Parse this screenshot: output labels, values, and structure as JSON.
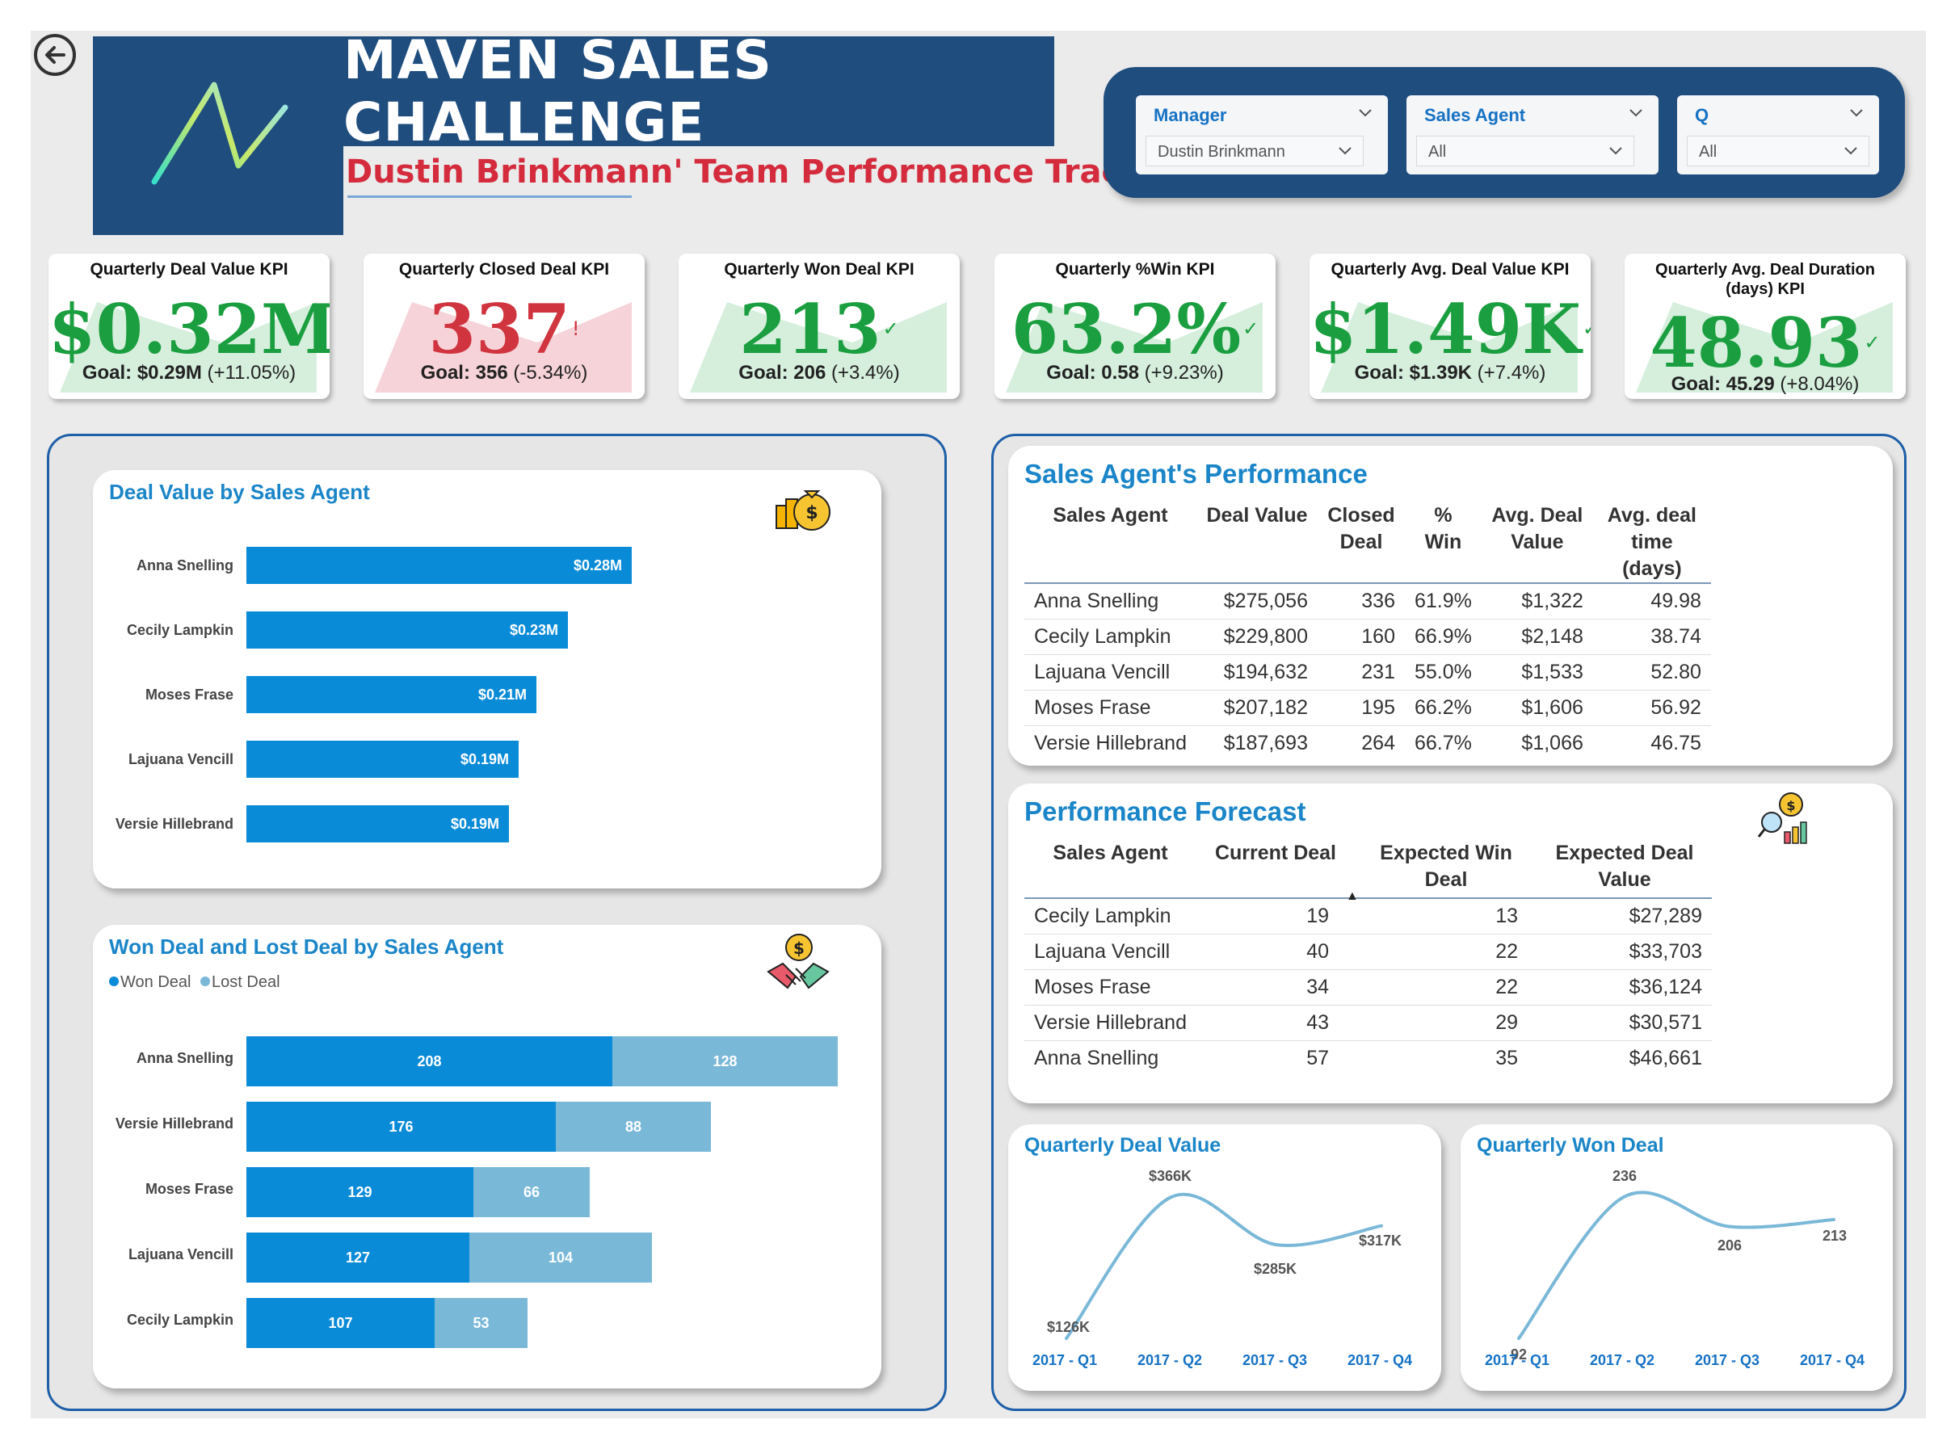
{
  "header": {
    "title": "MAVEN SALES CHALLENGE",
    "subtitle": "Dustin Brinkmann' Team Performance Tracker"
  },
  "filters": [
    {
      "label": "Manager",
      "value": "Dustin Brinkmann"
    },
    {
      "label": "Sales Agent",
      "value": "All"
    },
    {
      "label": "Q",
      "value": "All"
    }
  ],
  "kpis": [
    {
      "title": "Quarterly Deal Value KPI",
      "value": "$0.32M",
      "status": "good",
      "mark": "✓",
      "goal_label": "Goal: $0.29M",
      "goal_delta": "(+11.05%)"
    },
    {
      "title": "Quarterly Closed Deal KPI",
      "value": "337",
      "status": "bad",
      "mark": "!",
      "goal_label": "Goal: 356",
      "goal_delta": "(-5.34%)"
    },
    {
      "title": "Quarterly Won Deal KPI",
      "value": "213",
      "status": "good",
      "mark": "✓",
      "goal_label": "Goal: 206",
      "goal_delta": "(+3.4%)"
    },
    {
      "title": "Quarterly %Win KPI",
      "value": "63.2%",
      "status": "good",
      "mark": "✓",
      "goal_label": "Goal: 0.58",
      "goal_delta": "(+9.23%)"
    },
    {
      "title": "Quarterly Avg. Deal Value KPI",
      "value": "$1.49K",
      "status": "good",
      "mark": "✓",
      "goal_label": "Goal: $1.39K",
      "goal_delta": "(+7.4%)"
    },
    {
      "title": "Quarterly Avg. Deal Duration (days) KPI",
      "value": "48.93",
      "status": "good",
      "mark": "✓",
      "goal_label": "Goal: 45.29",
      "goal_delta": "(+8.04%)"
    }
  ],
  "deal_value_chart": {
    "title": "Deal Value by Sales Agent",
    "icon": "money-bags-icon"
  },
  "won_lost_chart": {
    "title": "Won Deal and Lost Deal by Sales Agent",
    "icon": "handshake-coin-icon",
    "legend": [
      "Won Deal",
      "Lost Deal"
    ]
  },
  "agent_table": {
    "title": "Sales Agent's Performance",
    "headers": [
      "Sales Agent",
      "Deal Value",
      "Closed Deal",
      "% Win",
      "Avg. Deal Value",
      "Avg. deal time (days)"
    ],
    "rows": [
      [
        "Anna Snelling",
        "$275,056",
        "336",
        "61.9%",
        "$1,322",
        "49.98"
      ],
      [
        "Cecily Lampkin",
        "$229,800",
        "160",
        "66.9%",
        "$2,148",
        "38.74"
      ],
      [
        "Lajuana Vencill",
        "$194,632",
        "231",
        "55.0%",
        "$1,533",
        "52.80"
      ],
      [
        "Moses Frase",
        "$207,182",
        "195",
        "66.2%",
        "$1,606",
        "56.92"
      ],
      [
        "Versie Hillebrand",
        "$187,693",
        "264",
        "66.7%",
        "$1,066",
        "46.75"
      ]
    ]
  },
  "forecast_table": {
    "title": "Performance Forecast",
    "icon": "forecast-analytics-icon",
    "headers": [
      "Sales Agent",
      "Current Deal",
      "Expected Win Deal",
      "Expected Deal Value"
    ],
    "sort_indicator": "▲",
    "rows": [
      [
        "Cecily Lampkin",
        "19",
        "13",
        "$27,289"
      ],
      [
        "Lajuana Vencill",
        "40",
        "22",
        "$33,703"
      ],
      [
        "Moses Frase",
        "34",
        "22",
        "$36,124"
      ],
      [
        "Versie Hillebrand",
        "43",
        "29",
        "$30,571"
      ],
      [
        "Anna Snelling",
        "57",
        "35",
        "$46,661"
      ]
    ]
  },
  "colors": {
    "header_blue": "#1e4d7e",
    "accent_blue": "#1a85c8",
    "won_bar": "#0a8bd8",
    "lost_bar": "#7ab8d8",
    "good": "#1a9e3f",
    "bad": "#d0343f",
    "line": "#7ab8d8"
  },
  "chart_data": [
    {
      "type": "bar",
      "orientation": "horizontal",
      "title": "Deal Value by Sales Agent",
      "categories": [
        "Anna Snelling",
        "Cecily Lampkin",
        "Moses Frase",
        "Lajuana Vencill",
        "Versie Hillebrand"
      ],
      "values": [
        275056,
        229800,
        207182,
        194632,
        187693
      ],
      "data_labels": [
        "$0.28M",
        "$0.23M",
        "$0.21M",
        "$0.19M",
        "$0.19M"
      ],
      "xlim": [
        0,
        300000
      ]
    },
    {
      "type": "bar",
      "orientation": "horizontal",
      "stacked": true,
      "title": "Won Deal and Lost Deal by Sales Agent",
      "categories": [
        "Anna Snelling",
        "Versie Hillebrand",
        "Moses Frase",
        "Lajuana Vencill",
        "Cecily Lampkin"
      ],
      "series": [
        {
          "name": "Won Deal",
          "values": [
            208,
            176,
            129,
            127,
            107
          ]
        },
        {
          "name": "Lost Deal",
          "values": [
            128,
            88,
            66,
            104,
            53
          ]
        }
      ],
      "xlim": [
        0,
        340
      ],
      "legend": "top-left"
    },
    {
      "type": "line",
      "title": "Quarterly Deal Value",
      "x": [
        "2017 - Q1",
        "2017 - Q2",
        "2017 - Q3",
        "2017 - Q4"
      ],
      "values": [
        126000,
        366000,
        285000,
        317000
      ],
      "data_labels": [
        "$126K",
        "$366K",
        "$285K",
        "$317K"
      ]
    },
    {
      "type": "line",
      "title": "Quarterly Won Deal",
      "x": [
        "2017 - Q1",
        "2017 - Q2",
        "2017 - Q3",
        "2017 - Q4"
      ],
      "values": [
        92,
        236,
        206,
        213
      ],
      "data_labels": [
        "92",
        "236",
        "206",
        "213"
      ]
    }
  ]
}
